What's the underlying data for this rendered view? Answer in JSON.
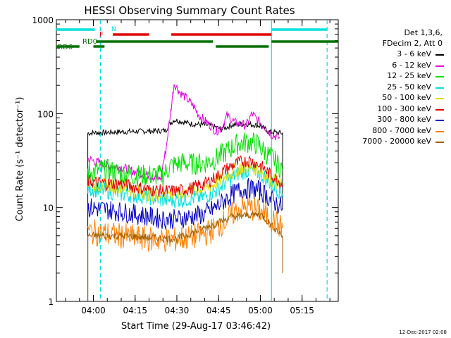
{
  "chart_data": {
    "type": "line",
    "title": "HESSI Observing Summary Count Rates",
    "xlabel": "Start Time (29-Aug-17 03:46:42)",
    "ylabel": "Count Rate (s⁻¹ detector⁻¹)",
    "x_ticks": [
      "04:00",
      "04:15",
      "04:30",
      "04:45",
      "05:00",
      "05:15"
    ],
    "y_ticks": [
      "1",
      "10",
      "100",
      "1000"
    ],
    "y_scale": "log",
    "ylim": [
      1,
      1000
    ],
    "xlim": [
      "03:46:42",
      "05:28:00"
    ],
    "series": [
      {
        "name": "3 - 6 keV",
        "color": "#000000",
        "points": [
          [
            "03:58",
            1
          ],
          [
            "03:58",
            62
          ],
          [
            "04:10",
            64
          ],
          [
            "04:20",
            65
          ],
          [
            "04:26",
            66
          ],
          [
            "04:27",
            75
          ],
          [
            "04:29",
            86
          ],
          [
            "04:35",
            78
          ],
          [
            "04:42",
            75
          ],
          [
            "04:46",
            68
          ],
          [
            "04:50",
            76
          ],
          [
            "04:55",
            78
          ],
          [
            "05:00",
            74
          ],
          [
            "05:03",
            64
          ],
          [
            "05:08",
            62
          ],
          [
            "05:08",
            10
          ]
        ]
      },
      {
        "name": "6 - 12 keV",
        "color": "#e000e0",
        "points": [
          [
            "03:58",
            33
          ],
          [
            "04:05",
            28
          ],
          [
            "04:10",
            27
          ],
          [
            "04:15",
            24
          ],
          [
            "04:20",
            22
          ],
          [
            "04:24",
            20
          ],
          [
            "04:26",
            40
          ],
          [
            "04:28",
            120
          ],
          [
            "04:29",
            210
          ],
          [
            "04:31",
            170
          ],
          [
            "04:33",
            150
          ],
          [
            "04:36",
            120
          ],
          [
            "04:38",
            95
          ],
          [
            "04:42",
            75
          ],
          [
            "04:44",
            65
          ],
          [
            "04:46",
            70
          ],
          [
            "04:48",
            95
          ],
          [
            "04:51",
            80
          ],
          [
            "04:55",
            75
          ],
          [
            "04:57",
            100
          ],
          [
            "04:59",
            85
          ],
          [
            "05:02",
            70
          ],
          [
            "05:04",
            60
          ],
          [
            "05:07",
            55
          ]
        ]
      },
      {
        "name": "12 - 25 keV",
        "color": "#00e000",
        "points": [
          [
            "03:58",
            24
          ],
          [
            "04:05",
            25
          ],
          [
            "04:10",
            23
          ],
          [
            "04:15",
            22
          ],
          [
            "04:20",
            22
          ],
          [
            "04:25",
            22
          ],
          [
            "04:28",
            28
          ],
          [
            "04:32",
            30
          ],
          [
            "04:36",
            29
          ],
          [
            "04:40",
            30
          ],
          [
            "04:44",
            33
          ],
          [
            "04:48",
            40
          ],
          [
            "04:52",
            48
          ],
          [
            "04:56",
            50
          ],
          [
            "04:59",
            47
          ],
          [
            "05:02",
            38
          ],
          [
            "05:05",
            32
          ],
          [
            "05:08",
            25
          ]
        ]
      },
      {
        "name": "25 - 50 keV",
        "color": "#00e0e0",
        "points": [
          [
            "03:58",
            16
          ],
          [
            "04:05",
            15
          ],
          [
            "04:10",
            14
          ],
          [
            "04:15",
            13.5
          ],
          [
            "04:20",
            13
          ],
          [
            "04:25",
            12
          ],
          [
            "04:30",
            12
          ],
          [
            "04:35",
            12.5
          ],
          [
            "04:40",
            13
          ],
          [
            "04:44",
            15
          ],
          [
            "04:48",
            19
          ],
          [
            "04:52",
            23
          ],
          [
            "04:56",
            25
          ],
          [
            "05:00",
            23
          ],
          [
            "05:03",
            19
          ],
          [
            "05:06",
            16
          ],
          [
            "05:08",
            14
          ]
        ]
      },
      {
        "name": "50 - 100 keV",
        "color": "#e0e000",
        "points": [
          [
            "03:58",
            18
          ],
          [
            "04:05",
            17
          ],
          [
            "04:10",
            17
          ],
          [
            "04:15",
            15
          ],
          [
            "04:20",
            14
          ],
          [
            "04:25",
            14
          ],
          [
            "04:30",
            14
          ],
          [
            "04:35",
            15
          ],
          [
            "04:40",
            16
          ],
          [
            "04:44",
            18
          ],
          [
            "04:48",
            22
          ],
          [
            "04:52",
            26
          ],
          [
            "04:56",
            27
          ],
          [
            "05:00",
            25
          ],
          [
            "05:04",
            20
          ],
          [
            "05:08",
            17
          ]
        ]
      },
      {
        "name": "100 - 300 keV",
        "color": "#e00000",
        "points": [
          [
            "03:58",
            19
          ],
          [
            "04:05",
            18
          ],
          [
            "04:10",
            18
          ],
          [
            "04:15",
            16.5
          ],
          [
            "04:20",
            15.5
          ],
          [
            "04:25",
            15
          ],
          [
            "04:30",
            15
          ],
          [
            "04:35",
            16
          ],
          [
            "04:40",
            18
          ],
          [
            "04:44",
            21
          ],
          [
            "04:48",
            26
          ],
          [
            "04:52",
            30
          ],
          [
            "04:56",
            32
          ],
          [
            "05:00",
            28
          ],
          [
            "05:04",
            22
          ],
          [
            "05:08",
            18
          ]
        ]
      },
      {
        "name": "300 - 800 keV",
        "color": "#0000c0",
        "points": [
          [
            "03:58",
            10
          ],
          [
            "04:05",
            9.5
          ],
          [
            "04:10",
            9
          ],
          [
            "04:15",
            8.5
          ],
          [
            "04:20",
            8
          ],
          [
            "04:25",
            7.5
          ],
          [
            "04:30",
            7.5
          ],
          [
            "04:35",
            8
          ],
          [
            "04:40",
            8.5
          ],
          [
            "04:44",
            10
          ],
          [
            "04:48",
            12.5
          ],
          [
            "04:52",
            15
          ],
          [
            "04:56",
            16
          ],
          [
            "05:00",
            15
          ],
          [
            "05:04",
            12
          ],
          [
            "05:08",
            10
          ]
        ]
      },
      {
        "name": "800 - 7000 keV",
        "color": "#ff8000",
        "points": [
          [
            "03:58",
            5.5
          ],
          [
            "04:05",
            5.2
          ],
          [
            "04:10",
            5
          ],
          [
            "04:15",
            4.8
          ],
          [
            "04:20",
            4.6
          ],
          [
            "04:25",
            4.5
          ],
          [
            "04:30",
            4.6
          ],
          [
            "04:35",
            4.8
          ],
          [
            "04:40",
            5.2
          ],
          [
            "04:44",
            6
          ],
          [
            "04:48",
            7.5
          ],
          [
            "04:52",
            9.5
          ],
          [
            "04:56",
            10
          ],
          [
            "05:00",
            9
          ],
          [
            "05:04",
            7.5
          ],
          [
            "05:08",
            6
          ]
        ]
      },
      {
        "name": "7000 - 20000 keV",
        "color": "#a06000",
        "points": [
          [
            "03:58",
            1
          ],
          [
            "03:58",
            5
          ],
          [
            "04:10",
            5
          ],
          [
            "04:30",
            4.6
          ],
          [
            "04:50",
            8
          ],
          [
            "05:00",
            8.5
          ],
          [
            "05:08",
            5
          ],
          [
            "05:08",
            2
          ]
        ]
      }
    ],
    "flag_labels": [
      "N",
      "F",
      "RD0",
      "RD6"
    ],
    "flag_colors": {
      "N": "#00e0e0",
      "F": "#e00000",
      "RD0": "#007000",
      "RD6": "#007000"
    },
    "flags": [
      {
        "label": "N",
        "start": "03:46:42",
        "end": "04:00:30"
      },
      {
        "label": "N",
        "start": "05:04:00",
        "end": "05:24:00"
      },
      {
        "label": "F",
        "start": "04:07:00",
        "end": "04:20:00"
      },
      {
        "label": "F",
        "start": "04:28:00",
        "end": "05:04:00"
      },
      {
        "label": "RD0",
        "start": "04:01:00",
        "end": "04:43:00"
      },
      {
        "label": "RD0",
        "start": "05:04:00",
        "end": "05:28:00"
      },
      {
        "label": "RD6",
        "start": "03:46:42",
        "end": "03:55:00"
      },
      {
        "label": "RD6",
        "start": "04:00:00",
        "end": "04:04:00"
      },
      {
        "label": "RD6",
        "start": "04:44:00",
        "end": "05:03:00"
      }
    ],
    "vlines": [
      {
        "time": "04:02:30",
        "style": "dashed",
        "color": "#00e0e0"
      },
      {
        "time": "05:04:00",
        "style": "solid",
        "color": "#00e0e0"
      },
      {
        "time": "05:24:00",
        "style": "dashed",
        "color": "#00e0e0"
      }
    ]
  },
  "legend": {
    "header1": "Det 1,3,6,",
    "header2": "FDecim 2, Att 0",
    "items": [
      {
        "label": "3 - 6 keV",
        "color": "#000000"
      },
      {
        "label": "6 - 12 keV",
        "color": "#e000e0"
      },
      {
        "label": "12 - 25 keV",
        "color": "#00e000"
      },
      {
        "label": "25 - 50 keV",
        "color": "#00e0e0"
      },
      {
        "label": "50 - 100 keV",
        "color": "#e0e000"
      },
      {
        "label": "100 - 300 keV",
        "color": "#e00000"
      },
      {
        "label": "300 - 800 keV",
        "color": "#0000c0"
      },
      {
        "label": "800 - 7000 keV",
        "color": "#ff8000"
      },
      {
        "label": "7000 - 20000 keV",
        "color": "#a06000"
      }
    ]
  },
  "footer": "12-Dec-2017 02:08"
}
